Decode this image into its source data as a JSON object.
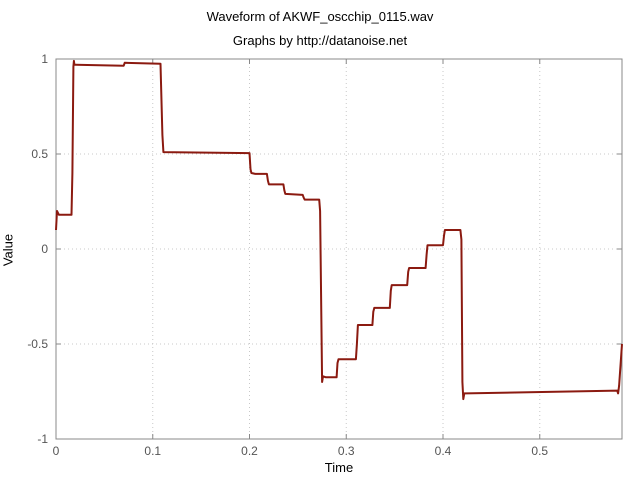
{
  "chart_data": {
    "type": "line",
    "title": "Waveform of AKWF_oscchip_0115.wav",
    "subtitle": "Graphs by http://datanoise.net",
    "xlabel": "Time",
    "ylabel": "Value",
    "xlim": [
      0,
      0.585
    ],
    "ylim": [
      -1,
      1
    ],
    "xticks": [
      0,
      0.1,
      0.2,
      0.3,
      0.4,
      0.5
    ],
    "xtick_labels": [
      "0",
      "0.1",
      "0.2",
      "0.3",
      "0.4",
      "0.5"
    ],
    "yticks": [
      -1,
      -0.5,
      0,
      0.5,
      1
    ],
    "ytick_labels": [
      "-1",
      "-0.5",
      "0",
      "0.5",
      "1"
    ],
    "grid": true,
    "colors": {
      "line": "#8b1a10",
      "grid": "#c8c8c8",
      "axis": "#888888"
    },
    "series": [
      {
        "x": [
          0,
          0.001,
          0.003,
          0.006,
          0.016,
          0.017,
          0.018,
          0.0185,
          0.019,
          0.02,
          0.07,
          0.071,
          0.108,
          0.11,
          0.111,
          0.2,
          0.201,
          0.202,
          0.206,
          0.218,
          0.219,
          0.22,
          0.235,
          0.236,
          0.237,
          0.255,
          0.256,
          0.257,
          0.272,
          0.273,
          0.275,
          0.276,
          0.279,
          0.29,
          0.291,
          0.292,
          0.31,
          0.311,
          0.312,
          0.327,
          0.328,
          0.329,
          0.345,
          0.346,
          0.347,
          0.363,
          0.364,
          0.365,
          0.382,
          0.383,
          0.384,
          0.4,
          0.401,
          0.402,
          0.418,
          0.419,
          0.42,
          0.421,
          0.422,
          0.424,
          0.58,
          0.581,
          0.582,
          0.585
        ],
        "y": [
          0.1,
          0.2,
          0.18,
          0.18,
          0.18,
          0.4,
          0.96,
          0.99,
          0.97,
          0.97,
          0.965,
          0.98,
          0.975,
          0.6,
          0.51,
          0.505,
          0.42,
          0.4,
          0.395,
          0.395,
          0.36,
          0.34,
          0.34,
          0.31,
          0.29,
          0.285,
          0.27,
          0.26,
          0.26,
          0.2,
          -0.7,
          -0.67,
          -0.675,
          -0.675,
          -0.6,
          -0.58,
          -0.58,
          -0.5,
          -0.4,
          -0.4,
          -0.33,
          -0.31,
          -0.31,
          -0.22,
          -0.19,
          -0.19,
          -0.12,
          -0.1,
          -0.1,
          -0.03,
          0.02,
          0.02,
          0.07,
          0.1,
          0.1,
          0.05,
          -0.7,
          -0.79,
          -0.76,
          -0.76,
          -0.745,
          -0.76,
          -0.72,
          -0.5
        ]
      }
    ]
  }
}
